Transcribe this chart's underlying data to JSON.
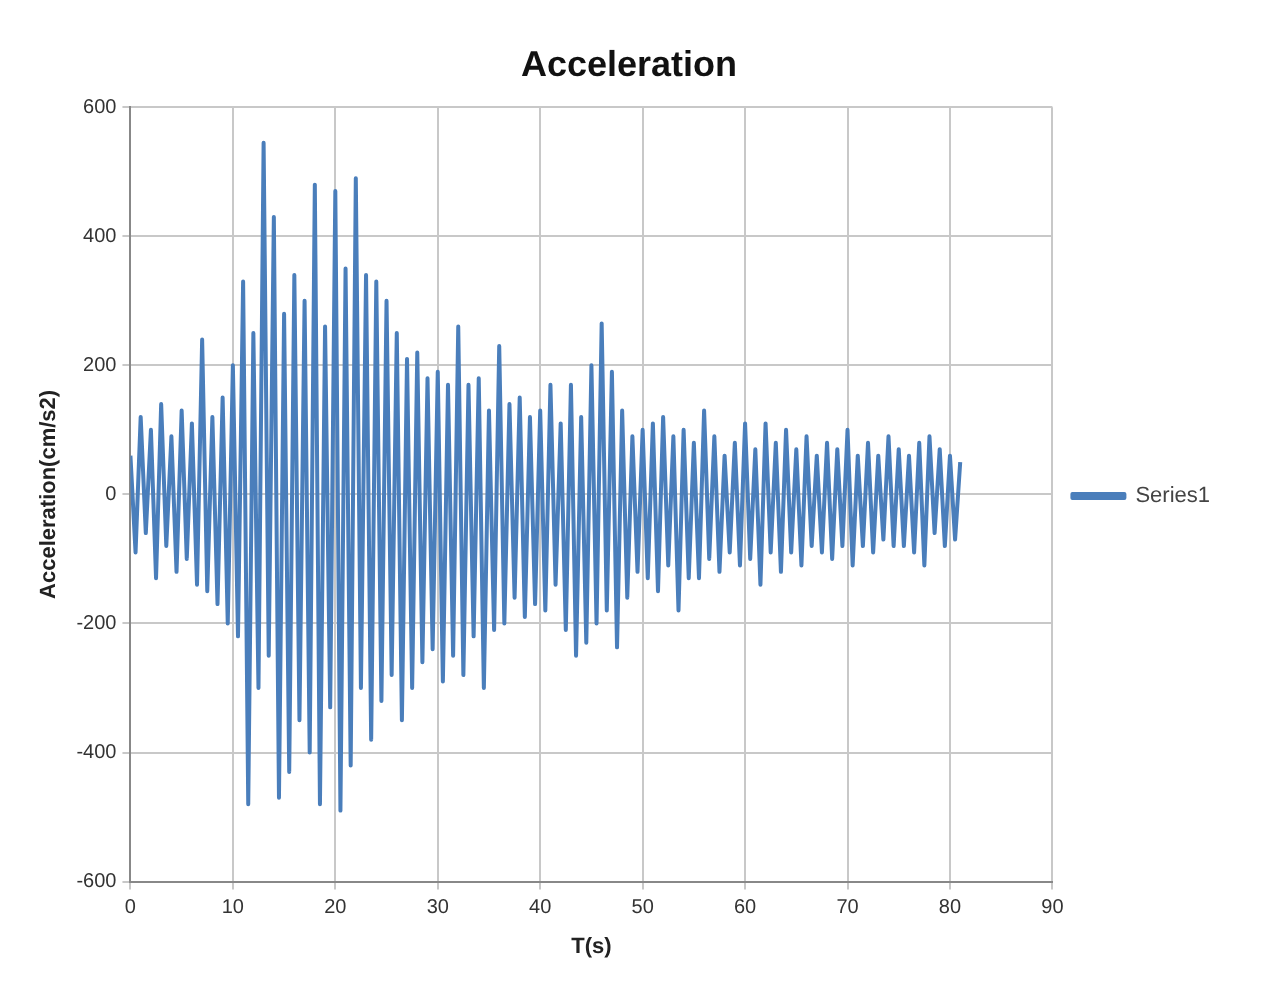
{
  "chart_data": {
    "type": "line",
    "title": "Acceleration",
    "xlabel": "T(s)",
    "ylabel": "Acceleration(cm/s2)",
    "x": [
      0,
      0.5,
      1,
      1.5,
      2,
      2.5,
      3,
      3.5,
      4,
      4.5,
      5,
      5.5,
      6,
      6.5,
      7,
      7.5,
      8,
      8.5,
      9,
      9.5,
      10,
      10.5,
      11,
      11.5,
      12,
      12.5,
      13,
      13.5,
      14,
      14.5,
      15,
      15.5,
      16,
      16.5,
      17,
      17.5,
      18,
      18.5,
      19,
      19.5,
      20,
      20.5,
      21,
      21.5,
      22,
      22.5,
      23,
      23.5,
      24,
      24.5,
      25,
      25.5,
      26,
      26.5,
      27,
      27.5,
      28,
      28.5,
      29,
      29.5,
      30,
      30.5,
      31,
      31.5,
      32,
      32.5,
      33,
      33.5,
      34,
      34.5,
      35,
      35.5,
      36,
      36.5,
      37,
      37.5,
      38,
      38.5,
      39,
      39.5,
      40,
      40.5,
      41,
      41.5,
      42,
      42.5,
      43,
      43.5,
      44,
      44.5,
      45,
      45.5,
      46,
      46.5,
      47,
      47.5,
      48,
      48.5,
      49,
      49.5,
      50,
      50.5,
      51,
      51.5,
      52,
      52.5,
      53,
      53.5,
      54,
      54.5,
      55,
      55.5,
      56,
      56.5,
      57,
      57.5,
      58,
      58.5,
      59,
      59.5,
      60,
      60.5,
      61,
      61.5,
      62,
      62.5,
      63,
      63.5,
      64,
      64.5,
      65,
      65.5,
      66,
      66.5,
      67,
      67.5,
      68,
      68.5,
      69,
      69.5,
      70,
      70.5,
      71,
      71.5,
      72,
      72.5,
      73,
      73.5,
      74,
      74.5,
      75,
      75.5,
      76,
      76.5,
      77,
      77.5,
      78,
      78.5,
      79,
      79.5,
      80,
      80.5,
      81
    ],
    "series": [
      {
        "name": "Series1",
        "color": "#4a7ebb",
        "values": [
          60,
          -90,
          120,
          -60,
          100,
          -130,
          140,
          -80,
          90,
          -120,
          130,
          -100,
          110,
          -140,
          240,
          -150,
          120,
          -170,
          150,
          -200,
          200,
          -220,
          330,
          -480,
          250,
          -300,
          545,
          -250,
          430,
          -470,
          280,
          -430,
          340,
          -350,
          300,
          -400,
          480,
          -480,
          260,
          -330,
          470,
          -490,
          350,
          -420,
          490,
          -300,
          340,
          -380,
          330,
          -320,
          300,
          -280,
          250,
          -350,
          210,
          -300,
          220,
          -260,
          180,
          -240,
          190,
          -290,
          170,
          -250,
          260,
          -280,
          170,
          -220,
          180,
          -300,
          130,
          -210,
          230,
          -200,
          140,
          -160,
          150,
          -190,
          120,
          -170,
          130,
          -180,
          170,
          -140,
          110,
          -210,
          170,
          -250,
          120,
          -230,
          200,
          -200,
          265,
          -180,
          190,
          -237,
          130,
          -160,
          90,
          -120,
          100,
          -130,
          110,
          -150,
          120,
          -110,
          90,
          -180,
          100,
          -130,
          80,
          -130,
          130,
          -100,
          90,
          -120,
          60,
          -90,
          80,
          -110,
          110,
          -100,
          70,
          -140,
          110,
          -90,
          80,
          -120,
          100,
          -90,
          70,
          -110,
          90,
          -80,
          60,
          -90,
          80,
          -100,
          70,
          -80,
          100,
          -110,
          60,
          -80,
          80,
          -90,
          60,
          -70,
          90,
          -80,
          70,
          -80,
          60,
          -90,
          80,
          -110,
          90,
          -60,
          70,
          -80,
          60,
          -70,
          50
        ]
      }
    ],
    "xlim": [
      0,
      90
    ],
    "xticks": [
      0,
      10,
      20,
      30,
      40,
      50,
      60,
      70,
      80,
      90
    ],
    "ylim": [
      -600,
      600
    ],
    "yticks": [
      -600,
      -400,
      -200,
      0,
      200,
      400,
      600
    ],
    "grid": true,
    "legend": "right",
    "marker": "none",
    "line_style": "solid"
  }
}
